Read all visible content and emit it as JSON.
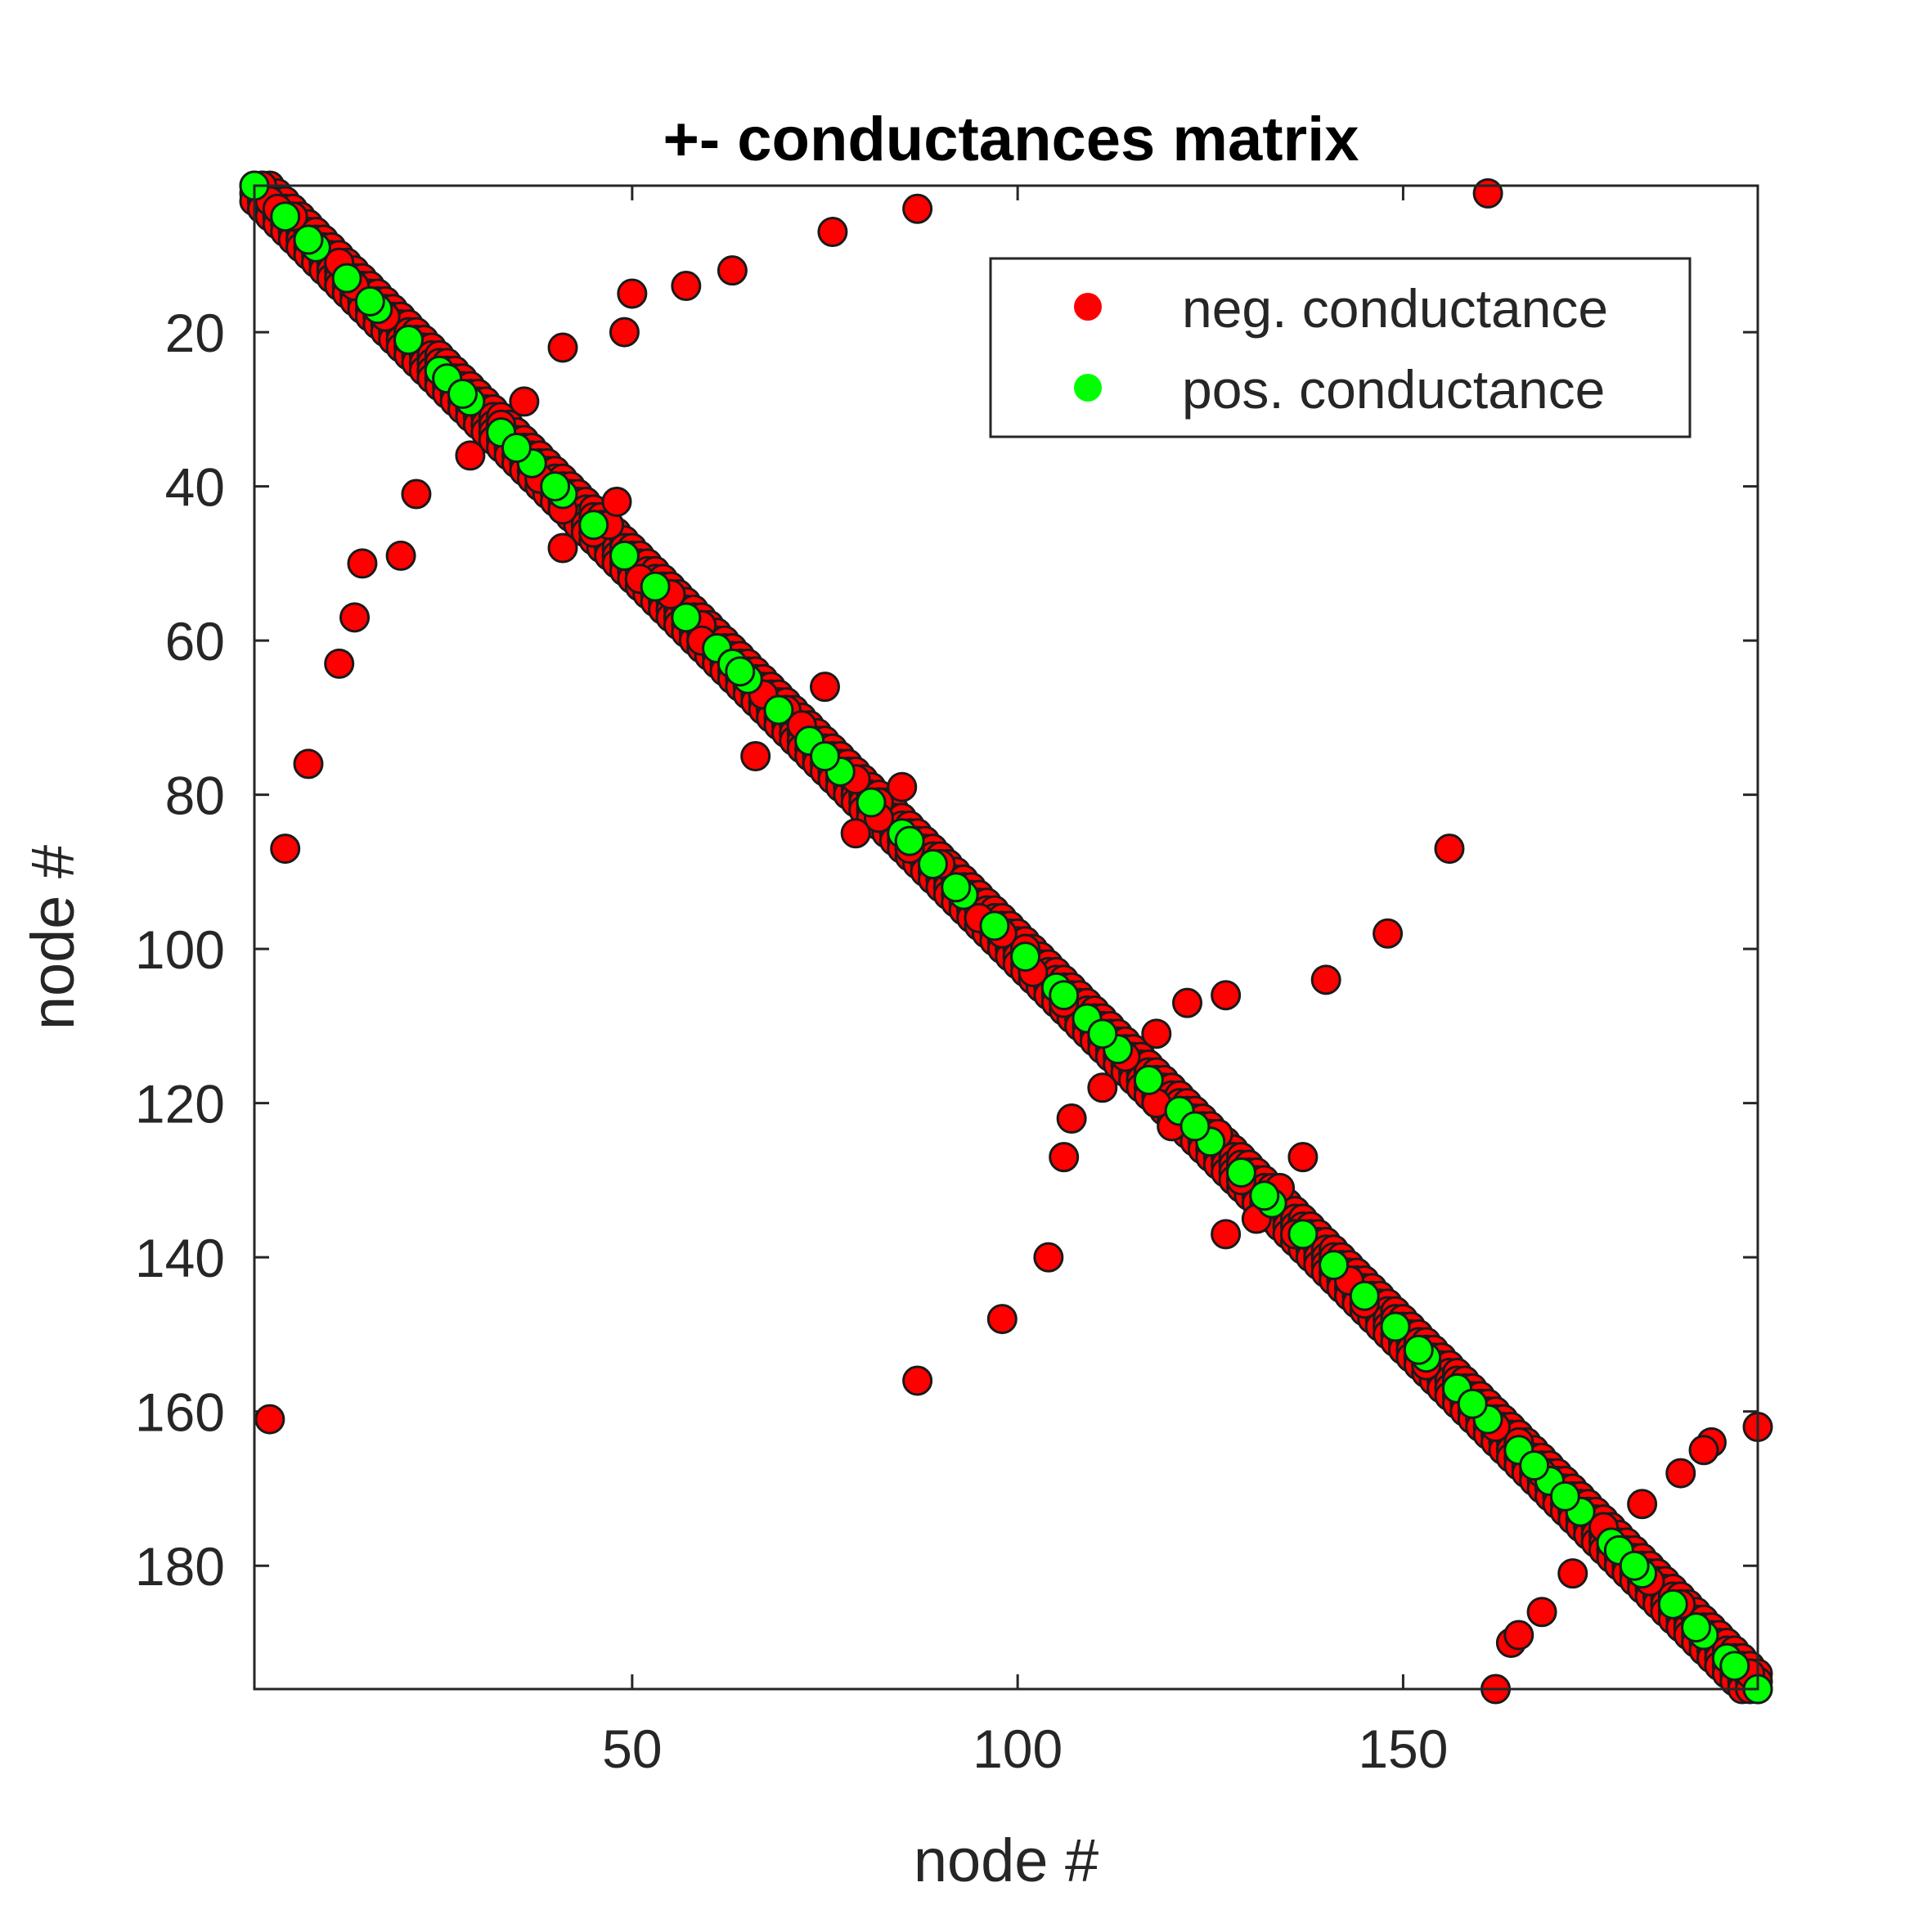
{
  "chart_data": {
    "type": "scatter",
    "title": "+- conductances matrix",
    "xlabel": "node #",
    "ylabel": "node #",
    "xlim": [
      1,
      196
    ],
    "ylim": [
      1,
      196
    ],
    "y_reversed": true,
    "xticks": [
      50,
      100,
      150
    ],
    "yticks": [
      20,
      40,
      60,
      80,
      100,
      120,
      140,
      160,
      180
    ],
    "grid": false,
    "legend": {
      "placement": "top-right",
      "entries": [
        "neg. conductance",
        "pos. conductance"
      ]
    },
    "series": [
      {
        "name": "neg. conductance",
        "color": "#ff0000",
        "diagonal_band": {
          "from": 1,
          "to": 196,
          "offsets": [
            -2,
            -1,
            0,
            1,
            2
          ]
        },
        "points": [
          [
            2,
            1
          ],
          [
            3,
            3
          ],
          [
            4,
            4
          ],
          [
            6,
            5
          ],
          [
            12,
            11
          ],
          [
            14,
            14
          ],
          [
            18,
            18
          ],
          [
            41,
            22
          ],
          [
            49,
            20
          ],
          [
            50,
            15
          ],
          [
            57,
            14
          ],
          [
            63,
            12
          ],
          [
            76,
            7
          ],
          [
            87,
            4
          ],
          [
            161,
            2
          ],
          [
            29,
            36
          ],
          [
            36,
            29
          ],
          [
            22,
            41
          ],
          [
            20,
            49
          ],
          [
            15,
            50
          ],
          [
            14,
            57
          ],
          [
            12,
            63
          ],
          [
            8,
            76
          ],
          [
            5,
            87
          ],
          [
            3,
            161
          ],
          [
            33,
            32
          ],
          [
            38,
            39
          ],
          [
            41,
            43
          ],
          [
            41,
            48
          ],
          [
            45,
            46
          ],
          [
            47,
            45
          ],
          [
            48,
            42
          ],
          [
            51,
            52
          ],
          [
            55,
            54
          ],
          [
            59,
            58
          ],
          [
            59,
            60
          ],
          [
            66,
            75
          ],
          [
            67,
            67
          ],
          [
            70,
            69
          ],
          [
            72,
            71
          ],
          [
            75,
            66
          ],
          [
            79,
            78
          ],
          [
            82,
            81
          ],
          [
            85,
            79
          ],
          [
            79,
            85
          ],
          [
            82,
            83
          ],
          [
            86,
            87
          ],
          [
            90,
            89
          ],
          [
            95,
            96
          ],
          [
            98,
            98
          ],
          [
            101,
            100
          ],
          [
            102,
            103
          ],
          [
            106,
            107
          ],
          [
            118,
            111
          ],
          [
            111,
            118
          ],
          [
            114,
            114
          ],
          [
            122,
            107
          ],
          [
            127,
            106
          ],
          [
            106,
            127
          ],
          [
            107,
            122
          ],
          [
            104,
            140
          ],
          [
            98,
            148
          ],
          [
            87,
            156
          ],
          [
            140,
            104
          ],
          [
            148,
            98
          ],
          [
            156,
            87
          ],
          [
            137,
            127
          ],
          [
            127,
            137
          ],
          [
            131,
            135
          ],
          [
            134,
            131
          ],
          [
            129,
            130
          ],
          [
            118,
            120
          ],
          [
            120,
            123
          ],
          [
            126,
            124
          ],
          [
            136,
            137
          ],
          [
            143,
            143
          ],
          [
            145,
            146
          ],
          [
            153,
            154
          ],
          [
            157,
            157
          ],
          [
            162,
            162
          ],
          [
            165,
            164
          ],
          [
            168,
            168
          ],
          [
            173,
            173
          ],
          [
            176,
            175
          ],
          [
            181,
            172
          ],
          [
            172,
            181
          ],
          [
            186,
            168
          ],
          [
            168,
            186
          ],
          [
            190,
            164
          ],
          [
            164,
            190
          ],
          [
            189,
            165
          ],
          [
            165,
            189
          ],
          [
            196,
            162
          ],
          [
            162,
            196
          ],
          [
            182,
            182
          ],
          [
            186,
            185
          ],
          [
            192,
            192
          ],
          [
            195,
            194
          ]
        ]
      },
      {
        "name": "pos. conductance",
        "color": "#00ff00",
        "diagonal_band": {
          "from": 1,
          "to": 196,
          "step": 4
        },
        "points": [
          [
            8,
            8
          ],
          [
            16,
            16
          ],
          [
            21,
            21
          ],
          [
            26,
            26
          ],
          [
            28,
            28
          ],
          [
            35,
            35
          ],
          [
            40,
            40
          ],
          [
            49,
            49
          ],
          [
            57,
            57
          ],
          [
            63,
            63
          ],
          [
            64,
            64
          ],
          [
            75,
            75
          ],
          [
            86,
            86
          ],
          [
            92,
            92
          ],
          [
            106,
            106
          ],
          [
            109,
            109
          ],
          [
            111,
            111
          ],
          [
            123,
            123
          ],
          [
            132,
            132
          ],
          [
            137,
            137
          ],
          [
            141,
            141
          ],
          [
            149,
            149
          ],
          [
            152,
            152
          ],
          [
            159,
            159
          ],
          [
            167,
            167
          ],
          [
            171,
            171
          ],
          [
            178,
            178
          ],
          [
            180,
            180
          ],
          [
            188,
            188
          ],
          [
            192,
            192
          ],
          [
            193,
            193
          ],
          [
            196,
            196
          ]
        ]
      }
    ]
  }
}
